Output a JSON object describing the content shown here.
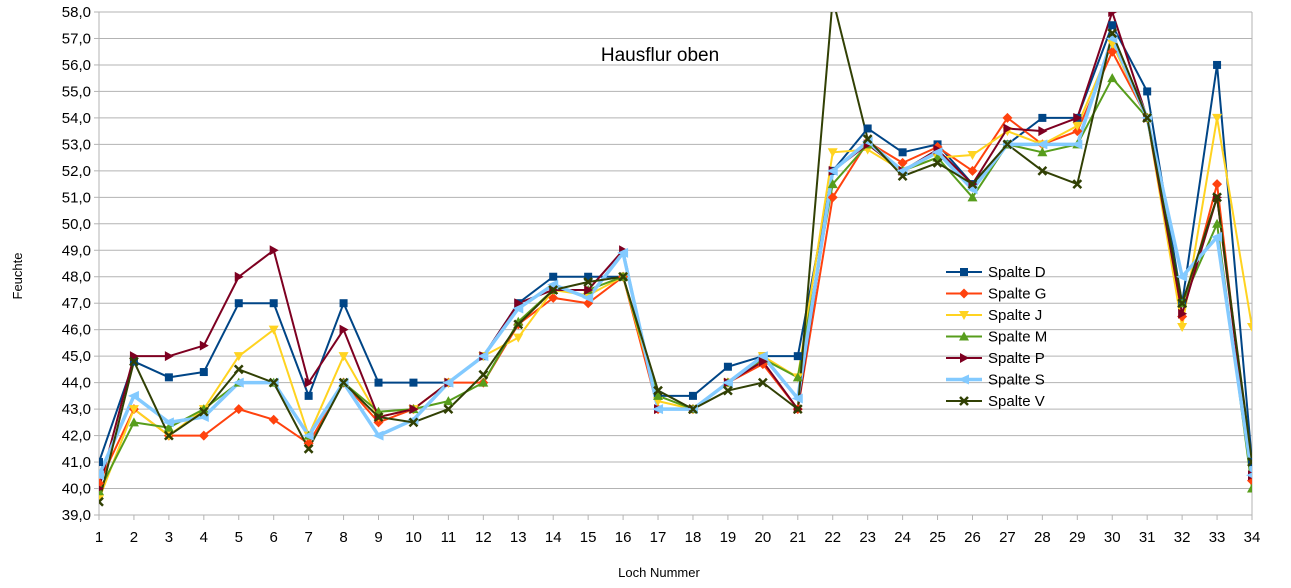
{
  "chart_data": {
    "type": "line",
    "title": "Hausflur oben",
    "xlabel": "Loch Nummer",
    "ylabel": "Feuchte",
    "x": [
      1,
      2,
      3,
      4,
      5,
      6,
      7,
      8,
      9,
      10,
      11,
      12,
      13,
      14,
      15,
      16,
      17,
      18,
      19,
      20,
      21,
      22,
      23,
      24,
      25,
      26,
      27,
      28,
      29,
      30,
      31,
      32,
      33,
      34
    ],
    "x_tick_labels": [
      "1",
      "2",
      "3",
      "4",
      "5",
      "6",
      "7",
      "8",
      "9",
      "10",
      "11",
      "12",
      "13",
      "14",
      "15",
      "16",
      "17",
      "18",
      "19",
      "20",
      "21",
      "22",
      "23",
      "24",
      "25",
      "26",
      "27",
      "28",
      "29",
      "30",
      "31",
      "32",
      "33",
      "34"
    ],
    "ylim": [
      39,
      58
    ],
    "y_tick_labels": [
      "39,0",
      "40,0",
      "41,0",
      "42,0",
      "43,0",
      "44,0",
      "45,0",
      "46,0",
      "47,0",
      "48,0",
      "49,0",
      "50,0",
      "51,0",
      "52,0",
      "53,0",
      "54,0",
      "55,0",
      "56,0",
      "57,0",
      "58,0"
    ],
    "grid": "horizontal",
    "legend_position": "right",
    "series": [
      {
        "name": "Spalte D",
        "color": "#004586",
        "marker": "square",
        "values": [
          41,
          44.8,
          44.2,
          44.4,
          47,
          47,
          43.5,
          47,
          44,
          44,
          44,
          45,
          47,
          48,
          48,
          48,
          43.5,
          43.5,
          44.6,
          45,
          45,
          52,
          53.6,
          52.7,
          53,
          51.5,
          53,
          54,
          54,
          57.5,
          55,
          47,
          56,
          41
        ]
      },
      {
        "name": "Spalte G",
        "color": "#ff420e",
        "marker": "diamond",
        "values": [
          40.2,
          43,
          42,
          42,
          43,
          42.6,
          41.7,
          44,
          42.5,
          43,
          44,
          44,
          46.2,
          47.2,
          47,
          48,
          43,
          43,
          44,
          44.7,
          43,
          51,
          53.1,
          52.3,
          52.9,
          52,
          54,
          53,
          53.5,
          56.5,
          54,
          46.5,
          51.5,
          40.3
        ]
      },
      {
        "name": "Spalte J",
        "color": "#ffd320",
        "marker": "triangle-down",
        "values": [
          39.6,
          43,
          42,
          43,
          45,
          46,
          42,
          45,
          42.7,
          43,
          44,
          45,
          45.7,
          47.5,
          47.3,
          48,
          43.3,
          43,
          44,
          45,
          44.2,
          52.7,
          52.8,
          52,
          52.5,
          52.6,
          53.5,
          53,
          53.7,
          56.8,
          54,
          46.1,
          54,
          46.1
        ]
      },
      {
        "name": "Spalte M",
        "color": "#579d1c",
        "marker": "triangle-up",
        "values": [
          39.9,
          42.5,
          42.3,
          43,
          44,
          44,
          42,
          44,
          42.9,
          43,
          43.3,
          44,
          46.3,
          47.5,
          47.5,
          48,
          43.5,
          43,
          44,
          44.9,
          44.2,
          51.5,
          53,
          52,
          52.5,
          51,
          53,
          52.7,
          53,
          55.5,
          54,
          47,
          50,
          40
        ]
      },
      {
        "name": "Spalte P",
        "color": "#7e0021",
        "marker": "triangle-right",
        "values": [
          40,
          45,
          45,
          45.4,
          48,
          49,
          44,
          46,
          42.7,
          43,
          44,
          45,
          47,
          47.5,
          47.5,
          49,
          43,
          43,
          44,
          44.8,
          43,
          52,
          53,
          52,
          52.8,
          51.5,
          53.6,
          53.5,
          54,
          58,
          54,
          46.6,
          51,
          40.5
        ]
      },
      {
        "name": "Spalte S",
        "color": "#83caff",
        "marker": "arrow-left",
        "values": [
          40.5,
          43.5,
          42.5,
          42.7,
          44,
          44,
          42,
          44,
          42,
          42.6,
          44,
          45,
          46.8,
          47.7,
          47.2,
          48.9,
          43,
          43,
          44,
          45,
          43.4,
          52,
          53.1,
          52,
          52.7,
          51.3,
          53,
          53,
          53,
          57,
          54,
          48,
          49.5,
          40.5
        ]
      },
      {
        "name": "Spalte V",
        "color": "#314004",
        "marker": "x",
        "values": [
          39.5,
          44.8,
          42,
          42.9,
          44.5,
          44,
          41.5,
          44,
          42.7,
          42.5,
          43,
          44.3,
          46.2,
          47.5,
          47.8,
          48,
          43.7,
          43,
          43.7,
          44,
          43,
          58.5,
          53.2,
          51.8,
          52.3,
          51.5,
          53,
          52,
          51.5,
          57.2,
          54,
          47,
          51,
          41
        ]
      }
    ]
  }
}
